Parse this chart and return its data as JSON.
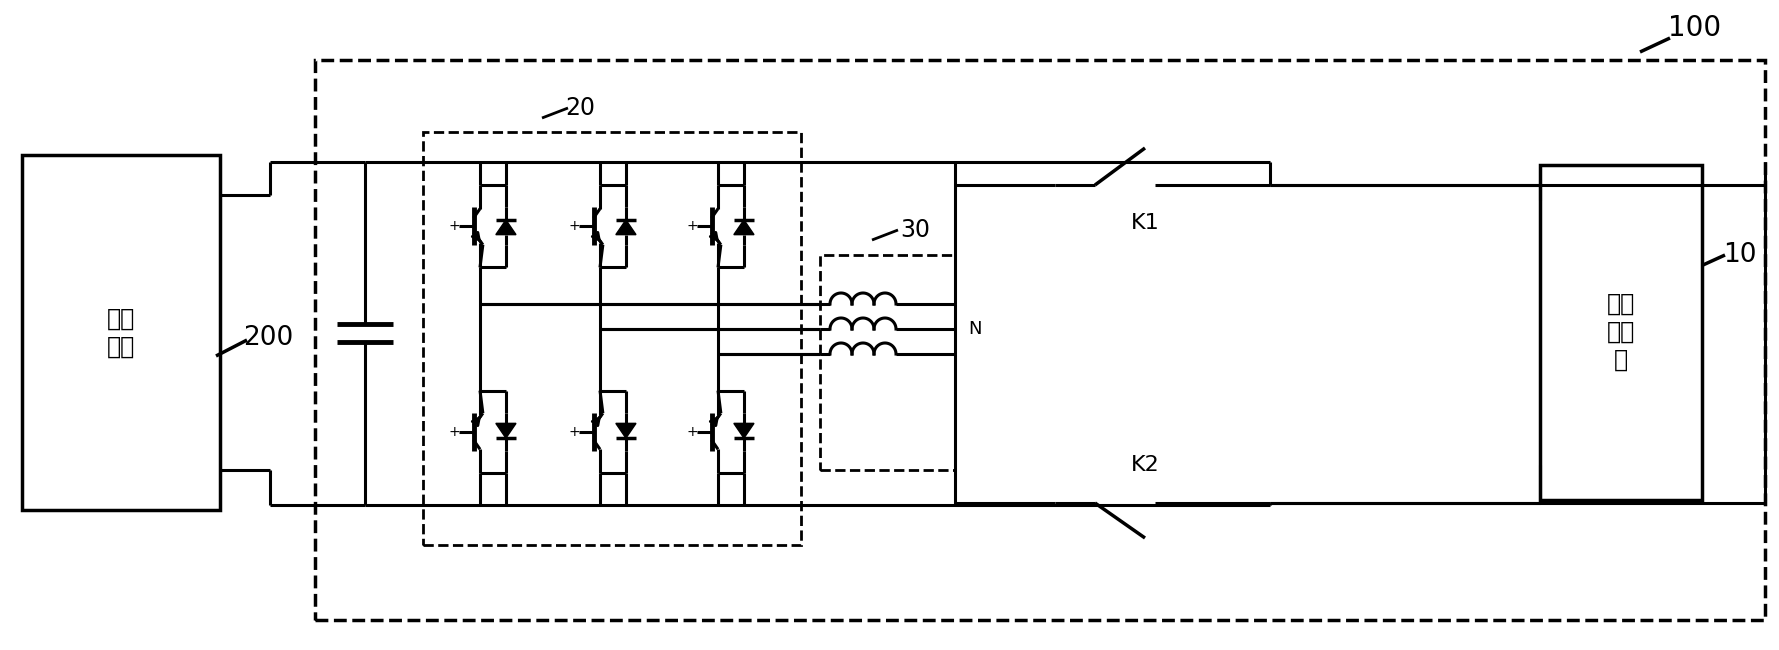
{
  "bg": "#ffffff",
  "lc": "#000000",
  "lw": 2.2,
  "figsize": [
    17.79,
    6.5
  ],
  "dpi": 100,
  "labels": {
    "battery": "动力\n电池",
    "charger": "第一\n充电\n口",
    "200": "200",
    "100": "100",
    "20": "20",
    "30": "30",
    "10": "10",
    "K1": "K1",
    "K2": "K2",
    "N": "N"
  }
}
